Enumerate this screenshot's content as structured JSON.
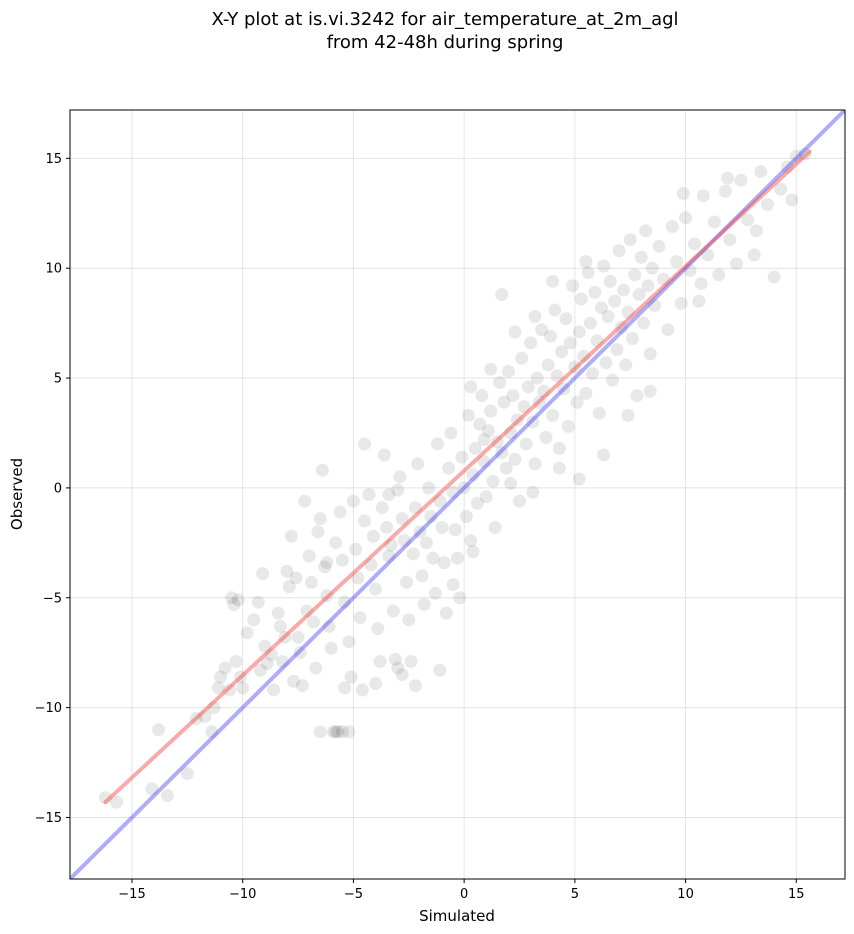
{
  "chart_data": {
    "type": "scatter",
    "title_line1": "X-Y plot at is.vi.3242 for air_temperature_at_2m_agl",
    "title_line2": "from 42-48h during spring",
    "xlabel": "Simulated",
    "ylabel": "Observed",
    "xlim": [
      -17.8,
      17.2
    ],
    "ylim": [
      -17.8,
      17.2
    ],
    "xticks": [
      -15,
      -10,
      -5,
      0,
      5,
      10,
      15
    ],
    "yticks": [
      -15,
      -10,
      -5,
      0,
      5,
      10,
      15
    ],
    "xtick_labels": [
      "−15",
      "−10",
      "−5",
      "0",
      "5",
      "10",
      "15"
    ],
    "ytick_labels": [
      "−15",
      "−10",
      "−5",
      "0",
      "5",
      "10",
      "15"
    ],
    "grid": true,
    "point_color": "#000000",
    "point_alpha": 0.09,
    "fit_line": {
      "color": "#ee4444",
      "alpha": 0.45,
      "x": [
        -16.2,
        15.6
      ],
      "y": [
        -14.3,
        15.3
      ]
    },
    "identity_line": {
      "color": "#3333ee",
      "alpha": 0.4,
      "x": [
        -17.8,
        17.2
      ],
      "y": [
        -17.8,
        17.2
      ]
    },
    "series": [
      {
        "points": [
          [
            -16.2,
            -14.1
          ],
          [
            -15.7,
            -14.3
          ],
          [
            -14.1,
            -13.7
          ],
          [
            -13.8,
            -11
          ],
          [
            -13.4,
            -14
          ],
          [
            -12.5,
            -13
          ],
          [
            -12.1,
            -10.5
          ],
          [
            -11.7,
            -10.4
          ],
          [
            -11.4,
            -11.1
          ],
          [
            -11.3,
            -10
          ],
          [
            -11.1,
            -9.1
          ],
          [
            -11,
            -8.6
          ],
          [
            -10.8,
            -8.2
          ],
          [
            -10.6,
            -9.2
          ],
          [
            -10.5,
            -5
          ],
          [
            -10.4,
            -5.3
          ],
          [
            -10.3,
            -7.9
          ],
          [
            -10.1,
            -8.6
          ],
          [
            -10,
            -9.1
          ],
          [
            -9.8,
            -6.6
          ],
          [
            -9.5,
            -6
          ],
          [
            -9.3,
            -5.2
          ],
          [
            -9.1,
            -3.9
          ],
          [
            -9,
            -7.2
          ],
          [
            -8.9,
            -8
          ],
          [
            -8.7,
            -7.6
          ],
          [
            -8.6,
            -9.2
          ],
          [
            -8.4,
            -5.7
          ],
          [
            -8.3,
            -6.3
          ],
          [
            -8.2,
            -7.9
          ],
          [
            -8,
            -3.8
          ],
          [
            -7.9,
            -4.5
          ],
          [
            -7.8,
            -2.2
          ],
          [
            -7.6,
            -4.1
          ],
          [
            -7.5,
            -6.8
          ],
          [
            -7.4,
            -7.5
          ],
          [
            -7.3,
            -9
          ],
          [
            -7.2,
            -0.6
          ],
          [
            -7.1,
            -5.6
          ],
          [
            -7,
            -3.1
          ],
          [
            -6.9,
            -4.3
          ],
          [
            -6.8,
            -6.1
          ],
          [
            -6.7,
            -8.2
          ],
          [
            -6.6,
            -2
          ],
          [
            -6.5,
            -1.4
          ],
          [
            -6.4,
            0.8
          ],
          [
            -6.3,
            -3.6
          ],
          [
            -6.2,
            -4.9
          ],
          [
            -6.1,
            -6.3
          ],
          [
            -6,
            -7.3
          ],
          [
            -5.9,
            -11.1
          ],
          [
            -5.8,
            -11.1
          ],
          [
            -5.7,
            -11.1
          ],
          [
            -5.5,
            -11.1
          ],
          [
            -5.2,
            -11.1
          ],
          [
            -6.5,
            -11.1
          ],
          [
            -5.8,
            -2.5
          ],
          [
            -5.6,
            -1.1
          ],
          [
            -5.5,
            -3.3
          ],
          [
            -5.4,
            -5.2
          ],
          [
            -5.2,
            -7
          ],
          [
            -5.1,
            -8.6
          ],
          [
            -5,
            -0.6
          ],
          [
            -4.9,
            -2.8
          ],
          [
            -4.8,
            -4.1
          ],
          [
            -4.7,
            -5.9
          ],
          [
            -4.6,
            -9.2
          ],
          [
            -4.5,
            -1.5
          ],
          [
            -4.3,
            -0.3
          ],
          [
            -4.2,
            -3.5
          ],
          [
            -4.1,
            -2.2
          ],
          [
            -4,
            -4.6
          ],
          [
            -3.9,
            -6.4
          ],
          [
            -3.8,
            -7.9
          ],
          [
            -3.7,
            -0.9
          ],
          [
            -3.6,
            1.5
          ],
          [
            -3.5,
            -1.8
          ],
          [
            -3.4,
            -3.1
          ],
          [
            -3.3,
            -2.6
          ],
          [
            -3.2,
            -5.6
          ],
          [
            -3.1,
            -7.8
          ],
          [
            -3,
            -0.1
          ],
          [
            -2.9,
            0.5
          ],
          [
            -2.8,
            -1.4
          ],
          [
            -2.7,
            -2.4
          ],
          [
            -2.6,
            -4.3
          ],
          [
            -2.5,
            -6
          ],
          [
            -2.4,
            -7.9
          ],
          [
            -2.3,
            -3
          ],
          [
            -2.2,
            -0.9
          ],
          [
            -2.1,
            1.1
          ],
          [
            -2,
            -2
          ],
          [
            -1.9,
            -4
          ],
          [
            -1.8,
            -5.3
          ],
          [
            -1.7,
            -2.5
          ],
          [
            -1.6,
            0
          ],
          [
            -1.5,
            -1.3
          ],
          [
            -1.4,
            -3.2
          ],
          [
            -1.3,
            -4.8
          ],
          [
            -1.2,
            2
          ],
          [
            -1.1,
            -0.6
          ],
          [
            -1,
            -1.8
          ],
          [
            -0.9,
            -3.4
          ],
          [
            -0.8,
            -5.7
          ],
          [
            -0.7,
            0.9
          ],
          [
            -0.6,
            2.5
          ],
          [
            -0.5,
            -0.2
          ],
          [
            -0.4,
            -1.9
          ],
          [
            -0.3,
            -3.2
          ],
          [
            -0.2,
            -5
          ],
          [
            -0.1,
            1.4
          ],
          [
            0,
            0
          ],
          [
            0.1,
            -1.3
          ],
          [
            0.2,
            3.3
          ],
          [
            0.3,
            -2.4
          ],
          [
            0.4,
            0.6
          ],
          [
            0.5,
            1.8
          ],
          [
            0.6,
            -0.7
          ],
          [
            0.7,
            2.9
          ],
          [
            0.8,
            4.2
          ],
          [
            0.9,
            1.2
          ],
          [
            1,
            -0.4
          ],
          [
            1.1,
            2.6
          ],
          [
            1.2,
            3.5
          ],
          [
            1.3,
            0.3
          ],
          [
            1.4,
            -1.8
          ],
          [
            1.5,
            2.1
          ],
          [
            1.6,
            4.8
          ],
          [
            1.7,
            1.6
          ],
          [
            1.8,
            3.9
          ],
          [
            1.9,
            0.9
          ],
          [
            2,
            5.3
          ],
          [
            2.1,
            2.5
          ],
          [
            2.2,
            4.2
          ],
          [
            2.3,
            1.3
          ],
          [
            2.4,
            3.1
          ],
          [
            2.5,
            -0.6
          ],
          [
            2.6,
            5.9
          ],
          [
            2.7,
            3.7
          ],
          [
            2.8,
            2
          ],
          [
            2.9,
            4.6
          ],
          [
            3,
            6.6
          ],
          [
            3.1,
            3
          ],
          [
            3.2,
            1.1
          ],
          [
            3.3,
            5
          ],
          [
            3.4,
            3.9
          ],
          [
            3.5,
            7.2
          ],
          [
            3.6,
            4.4
          ],
          [
            3.7,
            2.3
          ],
          [
            3.8,
            5.6
          ],
          [
            3.9,
            6.9
          ],
          [
            4,
            3.3
          ],
          [
            4.1,
            8.1
          ],
          [
            4.2,
            5.1
          ],
          [
            4.3,
            1.8
          ],
          [
            4.4,
            6.2
          ],
          [
            4.5,
            4.5
          ],
          [
            4.6,
            7.7
          ],
          [
            4.7,
            2.8
          ],
          [
            4.8,
            6.6
          ],
          [
            4.9,
            9.2
          ],
          [
            5,
            5.5
          ],
          [
            5.1,
            3.9
          ],
          [
            5.2,
            7.1
          ],
          [
            5.3,
            8.6
          ],
          [
            5.4,
            6
          ],
          [
            5.5,
            4.3
          ],
          [
            5.6,
            9.8
          ],
          [
            5.7,
            7.5
          ],
          [
            5.8,
            5.2
          ],
          [
            5.9,
            8.9
          ],
          [
            6,
            6.7
          ],
          [
            6.1,
            3.4
          ],
          [
            6.2,
            8.2
          ],
          [
            6.3,
            10.1
          ],
          [
            6.4,
            5.7
          ],
          [
            6.5,
            7.8
          ],
          [
            6.6,
            9.4
          ],
          [
            6.7,
            4.9
          ],
          [
            6.8,
            8.5
          ],
          [
            6.9,
            6.3
          ],
          [
            7,
            10.8
          ],
          [
            7.1,
            7.3
          ],
          [
            7.2,
            9
          ],
          [
            7.3,
            5.6
          ],
          [
            7.4,
            8
          ],
          [
            7.5,
            11.3
          ],
          [
            7.6,
            6.8
          ],
          [
            7.7,
            9.7
          ],
          [
            7.8,
            4.2
          ],
          [
            7.9,
            8.8
          ],
          [
            8,
            10.5
          ],
          [
            8.1,
            7.5
          ],
          [
            8.2,
            11.7
          ],
          [
            8.3,
            9.2
          ],
          [
            8.4,
            6.1
          ],
          [
            8.5,
            10
          ],
          [
            8.6,
            8.3
          ],
          [
            8.8,
            11
          ],
          [
            9,
            9.5
          ],
          [
            9.2,
            7.2
          ],
          [
            9.4,
            11.9
          ],
          [
            9.6,
            10.3
          ],
          [
            9.8,
            8.4
          ],
          [
            10,
            12.3
          ],
          [
            10.2,
            9.9
          ],
          [
            10.4,
            11.1
          ],
          [
            10.6,
            8.5
          ],
          [
            10.8,
            13.3
          ],
          [
            11,
            10.6
          ],
          [
            11.3,
            12.1
          ],
          [
            11.5,
            9.7
          ],
          [
            11.8,
            13.5
          ],
          [
            12,
            11.3
          ],
          [
            12.3,
            10.2
          ],
          [
            12.5,
            14
          ],
          [
            12.8,
            12.2
          ],
          [
            13.1,
            10.6
          ],
          [
            13.4,
            14.4
          ],
          [
            13.7,
            12.9
          ],
          [
            14,
            9.6
          ],
          [
            14.3,
            13.6
          ],
          [
            14.6,
            14.6
          ],
          [
            15,
            15.1
          ],
          [
            15.4,
            15.2
          ],
          [
            14.8,
            13.1
          ],
          [
            13.2,
            11.7
          ],
          [
            11.9,
            14.1
          ],
          [
            10.7,
            9.3
          ],
          [
            9.9,
            13.4
          ],
          [
            -2.2,
            -9
          ],
          [
            -1.1,
            -8.3
          ],
          [
            -3,
            -8.2
          ],
          [
            -2.8,
            -8.5
          ],
          [
            -0.5,
            -4.4
          ],
          [
            0.4,
            -2.9
          ],
          [
            -4.5,
            2
          ],
          [
            -3.4,
            -0.3
          ],
          [
            -6.2,
            -3.4
          ],
          [
            -8.1,
            -6.8
          ],
          [
            -9.2,
            -8.3
          ],
          [
            -10.2,
            -5.1
          ],
          [
            -7.7,
            -8.8
          ],
          [
            -5.4,
            -9.1
          ],
          [
            -4,
            -8.9
          ],
          [
            2.3,
            7.1
          ],
          [
            1.7,
            8.8
          ],
          [
            3.2,
            7.8
          ],
          [
            4,
            9.4
          ],
          [
            5.5,
            10.3
          ],
          [
            1.2,
            5.4
          ],
          [
            0.3,
            4.6
          ],
          [
            0.9,
            2.2
          ],
          [
            2.1,
            0.2
          ],
          [
            3.1,
            -0.2
          ],
          [
            4.3,
            0.9
          ],
          [
            5.2,
            0.4
          ],
          [
            6.3,
            1.5
          ],
          [
            7.4,
            3.3
          ],
          [
            8.4,
            4.4
          ]
        ]
      }
    ]
  }
}
